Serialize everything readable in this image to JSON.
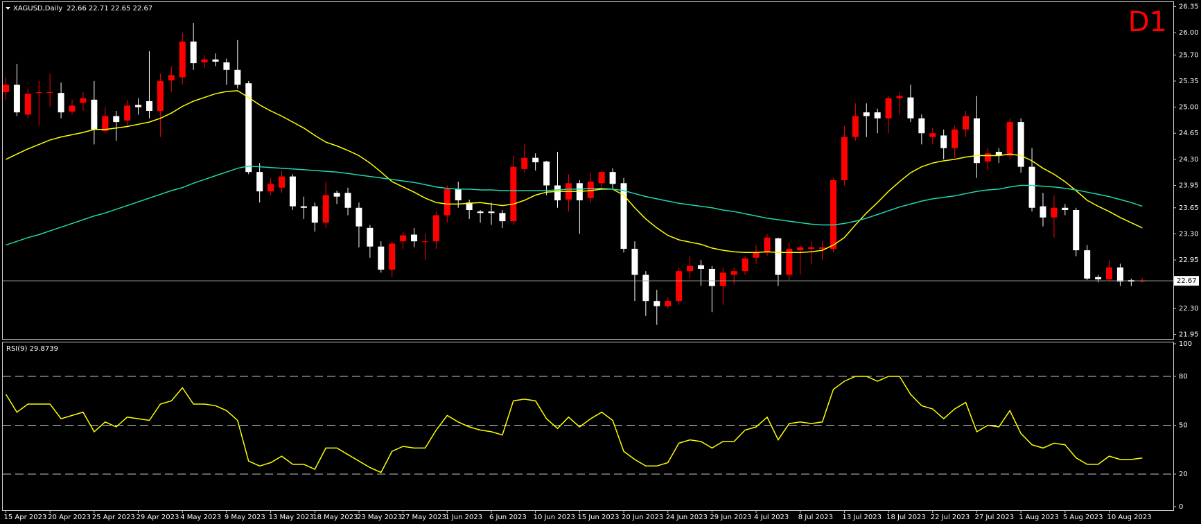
{
  "chart_data": [
    {
      "type": "candlestick",
      "title": "XAGUSD,Daily",
      "quote": "22.66 22.71 22.65 22.67",
      "timeframe": "D1",
      "timeframe_color": "#ff0000",
      "up_color": "#ff0000",
      "down_color": "#ffffff",
      "last_price": 22.67,
      "categories": [
        "15 Apr 2023",
        null,
        null,
        null,
        "20 Apr 2023",
        null,
        null,
        null,
        "25 Apr 2023",
        null,
        null,
        null,
        "29 Apr 2023",
        null,
        null,
        null,
        "4 May 2023",
        null,
        null,
        null,
        "9 May 2023",
        null,
        null,
        null,
        "13 May 2023",
        null,
        null,
        null,
        "18 May 2023",
        null,
        null,
        null,
        "23 May 2023",
        null,
        null,
        null,
        "27 May 2023",
        null,
        null,
        null,
        "1 Jun 2023",
        null,
        null,
        null,
        "6 Jun 2023",
        null,
        null,
        null,
        "10 Jun 2023",
        null,
        null,
        null,
        "15 Jun 2023",
        null,
        null,
        null,
        "20 Jun 2023",
        null,
        null,
        null,
        "24 Jun 2023",
        null,
        null,
        null,
        "29 Jun 2023",
        null,
        null,
        null,
        "4 Jul 2023",
        null,
        null,
        null,
        "8 Jul 2023",
        null,
        null,
        null,
        "13 Jul 2023",
        null,
        null,
        null,
        "18 Jul 2023",
        null,
        null,
        null,
        "22 Jul 2023",
        null,
        null,
        null,
        "27 Jul 2023",
        null,
        null,
        null,
        "1 Aug 2023",
        null,
        null,
        null,
        "5 Aug 2023",
        null,
        null,
        null,
        "10 Aug 2023",
        null,
        null,
        null
      ],
      "open": [
        25.2,
        25.3,
        24.9,
        25.19,
        25.2,
        25.19,
        24.94,
        25.06,
        25.1,
        24.68,
        24.88,
        24.82,
        25.03,
        25.08,
        24.95,
        25.36,
        25.4,
        25.88,
        25.6,
        25.64,
        25.6,
        25.5,
        25.32,
        24.13,
        23.87,
        23.92,
        24.07,
        23.67,
        23.67,
        23.45,
        23.85,
        23.85,
        23.65,
        23.38,
        23.13,
        22.82,
        23.2,
        23.29,
        23.19,
        23.2,
        23.55,
        23.9,
        23.72,
        23.6,
        23.6,
        23.58,
        23.47,
        24.17,
        24.32,
        24.27,
        23.95,
        23.76,
        23.98,
        23.78,
        23.98,
        24.13,
        23.98,
        23.1,
        22.75,
        22.4,
        22.33,
        22.4,
        22.8,
        22.88,
        22.83,
        22.6,
        22.75,
        22.8,
        22.98,
        23.05,
        23.24,
        22.75,
        23.08,
        23.1,
        23.1,
        23.1,
        24.02,
        24.6,
        24.93,
        24.93,
        24.85,
        25.12,
        25.13,
        24.85,
        24.6,
        24.62,
        24.45,
        24.7,
        24.85,
        24.27,
        24.4,
        24.35,
        24.8,
        24.2,
        23.67,
        23.52,
        23.65,
        23.62,
        23.08,
        22.72,
        22.69,
        22.85,
        22.68,
        22.66
      ],
      "high": [
        25.4,
        25.58,
        25.25,
        25.35,
        25.45,
        25.33,
        25.1,
        25.2,
        25.35,
        25.0,
        24.95,
        25.1,
        25.12,
        25.75,
        25.45,
        25.55,
        26.0,
        26.13,
        25.7,
        25.72,
        25.65,
        25.9,
        25.35,
        24.25,
        24.05,
        24.15,
        24.1,
        23.8,
        23.72,
        24.0,
        23.88,
        23.92,
        23.72,
        23.42,
        23.2,
        23.2,
        23.33,
        23.38,
        23.3,
        23.6,
        23.95,
        24.0,
        23.76,
        23.62,
        23.72,
        23.62,
        24.35,
        24.5,
        24.38,
        24.28,
        24.4,
        24.1,
        24.02,
        24.12,
        24.15,
        24.18,
        24.05,
        23.2,
        22.8,
        22.55,
        22.45,
        22.85,
        23.0,
        22.95,
        22.87,
        22.85,
        22.85,
        23.0,
        23.15,
        23.3,
        23.25,
        23.18,
        23.15,
        23.2,
        23.2,
        24.05,
        24.75,
        25.05,
        25.05,
        24.98,
        25.15,
        25.2,
        25.3,
        24.9,
        24.72,
        24.7,
        24.75,
        24.95,
        25.15,
        24.45,
        24.45,
        24.85,
        24.85,
        24.45,
        23.85,
        23.82,
        23.7,
        23.65,
        23.15,
        22.75,
        22.95,
        22.9,
        22.7,
        22.71
      ],
      "low": [
        25.1,
        24.88,
        24.85,
        24.75,
        25.0,
        24.85,
        24.9,
        24.95,
        24.5,
        24.65,
        24.55,
        24.75,
        24.9,
        24.85,
        24.6,
        25.2,
        25.3,
        25.5,
        25.52,
        25.55,
        25.3,
        25.25,
        24.1,
        23.72,
        23.82,
        23.85,
        23.62,
        23.5,
        23.33,
        23.38,
        23.7,
        23.55,
        23.12,
        22.98,
        22.78,
        22.72,
        23.1,
        23.12,
        22.95,
        23.1,
        23.45,
        23.65,
        23.5,
        23.45,
        23.42,
        23.38,
        23.42,
        24.12,
        24.15,
        23.82,
        23.65,
        23.6,
        23.3,
        23.72,
        23.9,
        23.9,
        23.05,
        22.4,
        22.2,
        22.08,
        22.3,
        22.35,
        22.7,
        22.6,
        22.25,
        22.35,
        22.62,
        22.75,
        22.9,
        23.0,
        22.6,
        22.68,
        22.75,
        22.9,
        22.95,
        23.05,
        23.95,
        24.55,
        24.6,
        24.65,
        24.65,
        24.9,
        24.8,
        24.5,
        24.5,
        24.3,
        24.32,
        24.6,
        24.05,
        24.15,
        24.25,
        24.3,
        24.12,
        23.6,
        23.4,
        23.25,
        23.55,
        23.0,
        22.68,
        22.65,
        22.66,
        22.6,
        22.6,
        22.65
      ],
      "close": [
        25.3,
        24.93,
        25.18,
        25.2,
        25.2,
        24.93,
        25.02,
        25.12,
        24.7,
        24.88,
        24.8,
        25.02,
        25.0,
        24.95,
        25.35,
        25.43,
        25.88,
        25.59,
        25.64,
        25.61,
        25.5,
        25.3,
        24.13,
        23.87,
        23.97,
        24.07,
        23.67,
        23.65,
        23.45,
        23.82,
        23.8,
        23.65,
        23.4,
        23.13,
        22.82,
        23.17,
        23.28,
        23.2,
        23.2,
        23.55,
        23.9,
        23.75,
        23.62,
        23.58,
        23.58,
        23.47,
        24.2,
        24.32,
        24.26,
        23.95,
        23.75,
        23.98,
        23.75,
        24.0,
        24.13,
        23.97,
        23.1,
        22.75,
        22.4,
        22.33,
        22.4,
        22.8,
        22.87,
        22.83,
        22.6,
        22.78,
        22.8,
        22.97,
        23.05,
        23.25,
        22.75,
        23.1,
        23.12,
        23.12,
        23.12,
        24.02,
        24.6,
        24.88,
        24.88,
        24.85,
        25.12,
        25.15,
        24.85,
        24.65,
        24.65,
        24.45,
        24.7,
        24.88,
        24.25,
        24.38,
        24.35,
        24.8,
        24.2,
        23.65,
        23.52,
        23.65,
        23.62,
        23.08,
        22.7,
        22.69,
        22.85,
        22.66,
        22.66,
        22.67
      ],
      "series": [
        {
          "color": "#ffff00",
          "values": [
            24.3,
            24.37,
            24.44,
            24.5,
            24.56,
            24.6,
            24.63,
            24.66,
            24.7,
            24.7,
            24.72,
            24.74,
            24.77,
            24.8,
            24.85,
            24.92,
            25.01,
            25.08,
            25.13,
            25.18,
            25.21,
            25.22,
            25.13,
            25.03,
            24.95,
            24.88,
            24.8,
            24.72,
            24.62,
            24.53,
            24.48,
            24.42,
            24.35,
            24.25,
            24.13,
            24.0,
            23.93,
            23.86,
            23.78,
            23.72,
            23.7,
            23.7,
            23.71,
            23.72,
            23.7,
            23.68,
            23.7,
            23.75,
            23.82,
            23.86,
            23.87,
            23.87,
            23.87,
            23.88,
            23.9,
            23.9,
            23.82,
            23.65,
            23.5,
            23.38,
            23.28,
            23.22,
            23.19,
            23.16,
            23.11,
            23.08,
            23.06,
            23.05,
            23.05,
            23.06,
            23.05,
            23.05,
            23.05,
            23.06,
            23.08,
            23.15,
            23.25,
            23.42,
            23.58,
            23.72,
            23.87,
            24.0,
            24.12,
            24.2,
            24.25,
            24.28,
            24.3,
            24.33,
            24.35,
            24.35,
            24.35,
            24.37,
            24.35,
            24.28,
            24.18,
            24.1,
            24.0,
            23.88,
            23.75,
            23.67,
            23.6,
            23.52,
            23.45,
            23.38
          ]
        },
        {
          "color": "#20d8b0",
          "values": [
            23.15,
            23.2,
            23.25,
            23.29,
            23.34,
            23.39,
            23.44,
            23.49,
            23.54,
            23.58,
            23.63,
            23.68,
            23.73,
            23.78,
            23.83,
            23.88,
            23.92,
            23.98,
            24.03,
            24.08,
            24.13,
            24.18,
            24.21,
            24.2,
            24.19,
            24.18,
            24.17,
            24.16,
            24.15,
            24.14,
            24.13,
            24.11,
            24.09,
            24.07,
            24.05,
            24.03,
            24.01,
            23.99,
            23.96,
            23.93,
            23.91,
            23.9,
            23.9,
            23.89,
            23.89,
            23.88,
            23.88,
            23.88,
            23.88,
            23.88,
            23.89,
            23.9,
            23.9,
            23.91,
            23.91,
            23.9,
            23.88,
            23.84,
            23.8,
            23.77,
            23.74,
            23.71,
            23.69,
            23.67,
            23.65,
            23.62,
            23.6,
            23.57,
            23.54,
            23.51,
            23.49,
            23.47,
            23.45,
            23.43,
            23.42,
            23.42,
            23.44,
            23.47,
            23.51,
            23.56,
            23.61,
            23.66,
            23.7,
            23.74,
            23.77,
            23.79,
            23.81,
            23.84,
            23.87,
            23.89,
            23.9,
            23.93,
            23.95,
            23.95,
            23.94,
            23.93,
            23.91,
            23.89,
            23.86,
            23.83,
            23.8,
            23.76,
            23.72,
            23.67
          ]
        }
      ],
      "ylim": [
        21.9,
        26.4
      ],
      "yticks": [
        21.95,
        {
          "value": 22.3,
          "label": "22.30"
        },
        22.95,
        {
          "value": 23.3,
          "label": "23.30"
        },
        23.65,
        23.95,
        {
          "value": 24.3,
          "label": "24.30"
        },
        24.65,
        {
          "value": 25,
          "label": "25.00"
        },
        25.35,
        {
          "value": 25.7,
          "label": "25.70"
        },
        {
          "value": 26,
          "label": "26.00"
        },
        26.35
      ]
    },
    {
      "type": "line",
      "title": "RSI(9) 29.8739",
      "grid": true,
      "series": [
        {
          "color": "#ffff00",
          "values": [
            69,
            58,
            63,
            63,
            63,
            54,
            56,
            58,
            46,
            52,
            49,
            55,
            54,
            53,
            63,
            65,
            73,
            63,
            63,
            62,
            59,
            53,
            28,
            25,
            27,
            31,
            26,
            26,
            23,
            36,
            36,
            32,
            28,
            24,
            21,
            34,
            37,
            36,
            36,
            47,
            56,
            52,
            49,
            47,
            46,
            44,
            65,
            66,
            65,
            54,
            48,
            55,
            49,
            54,
            58,
            53,
            34,
            29,
            25,
            25,
            27,
            39,
            41,
            40,
            36,
            40,
            40,
            47,
            49,
            55,
            41,
            51,
            52,
            51,
            52,
            72,
            77,
            80,
            80,
            77,
            80,
            80,
            69,
            62,
            60,
            54,
            60,
            64,
            46,
            50,
            49,
            59,
            45,
            38,
            36,
            39,
            38,
            30,
            26,
            26,
            31,
            29,
            29,
            29.87
          ]
        }
      ],
      "ylim": [
        0,
        100
      ],
      "yticks": [
        0,
        20,
        50,
        80,
        100
      ]
    }
  ]
}
